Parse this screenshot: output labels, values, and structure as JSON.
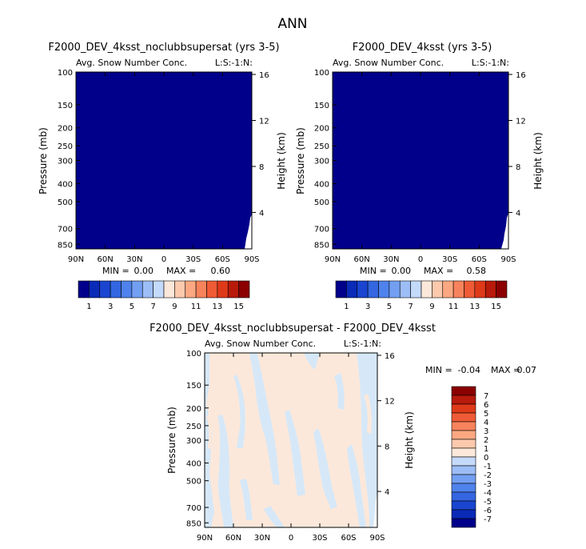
{
  "page": {
    "title": "ANN"
  },
  "palette": [
    "#00008b",
    "#0a2ab8",
    "#1a45d0",
    "#3366e0",
    "#4f82ec",
    "#739ff2",
    "#9dbdf7",
    "#c4dafb",
    "#fce8da",
    "#fcc9ad",
    "#fba882",
    "#f7835c",
    "#ef5b36",
    "#de3a1a",
    "#b81a0b",
    "#8b0000"
  ],
  "chart_data": [
    {
      "type": "heatmap",
      "title": "F2000_DEV_4ksst_noclubbsupersat (yrs 3-5)",
      "subtitle": "Avg. Snow Number Conc.",
      "subtitle_right": "L:S:-1:N:",
      "xlabel": "",
      "ylabel": "Pressure (mb)",
      "ylabel_right": "Height (km)",
      "x_ticks": [
        "90N",
        "60N",
        "30N",
        "0",
        "30S",
        "60S",
        "90S"
      ],
      "y_ticks": [
        "100",
        "150",
        "200",
        "250",
        "300",
        "400",
        "500",
        "700",
        "850"
      ],
      "y2_ticks": [
        "16",
        "12",
        "8",
        "4"
      ],
      "xlim": [
        90,
        -90
      ],
      "ylim": [
        100,
        900
      ],
      "log_y": true,
      "stats": {
        "min_label": "MIN =",
        "min": "0.00",
        "max_label": "MAX =",
        "max": "0.60"
      },
      "colorbar": {
        "orientation": "horizontal",
        "labels": [
          "1",
          "3",
          "5",
          "7",
          "9",
          "11",
          "13",
          "15"
        ]
      }
    },
    {
      "type": "heatmap",
      "title": "F2000_DEV_4ksst (yrs 3-5)",
      "subtitle": "Avg. Snow Number Conc.",
      "subtitle_right": "L:S:-1:N:",
      "xlabel": "",
      "ylabel": "Pressure (mb)",
      "ylabel_right": "Height (km)",
      "x_ticks": [
        "90N",
        "60N",
        "30N",
        "0",
        "30S",
        "60S",
        "90S"
      ],
      "y_ticks": [
        "100",
        "150",
        "200",
        "250",
        "300",
        "400",
        "500",
        "700",
        "850"
      ],
      "y2_ticks": [
        "16",
        "12",
        "8",
        "4"
      ],
      "xlim": [
        90,
        -90
      ],
      "ylim": [
        100,
        900
      ],
      "log_y": true,
      "stats": {
        "min_label": "MIN =",
        "min": "0.00",
        "max_label": "MAX =",
        "max": "0.58"
      },
      "colorbar": {
        "orientation": "horizontal",
        "labels": [
          "1",
          "3",
          "5",
          "7",
          "9",
          "11",
          "13",
          "15"
        ]
      }
    },
    {
      "type": "heatmap",
      "title": "F2000_DEV_4ksst_noclubbsupersat - F2000_DEV_4ksst",
      "subtitle": "Avg. Snow Number Conc.",
      "subtitle_right": "L:S:-1:N:",
      "xlabel": "",
      "ylabel": "Pressure (mb)",
      "ylabel_right": "Height (km)",
      "x_ticks": [
        "90N",
        "60N",
        "30N",
        "0",
        "30S",
        "60S",
        "90S"
      ],
      "y_ticks": [
        "100",
        "150",
        "200",
        "250",
        "300",
        "400",
        "500",
        "700",
        "850"
      ],
      "y2_ticks": [
        "16",
        "12",
        "8",
        "4"
      ],
      "xlim": [
        90,
        -90
      ],
      "ylim": [
        100,
        900
      ],
      "log_y": true,
      "stats": {
        "min_label": "MIN =",
        "min": "-0.04",
        "max_label": "MAX =",
        "max": "0.07"
      },
      "colorbar": {
        "orientation": "vertical",
        "labels": [
          "7",
          "6",
          "5",
          "4",
          "3",
          "2",
          "1",
          "0",
          "-1",
          "-2",
          "-3",
          "-4",
          "-5",
          "-6",
          "-7"
        ]
      }
    }
  ]
}
